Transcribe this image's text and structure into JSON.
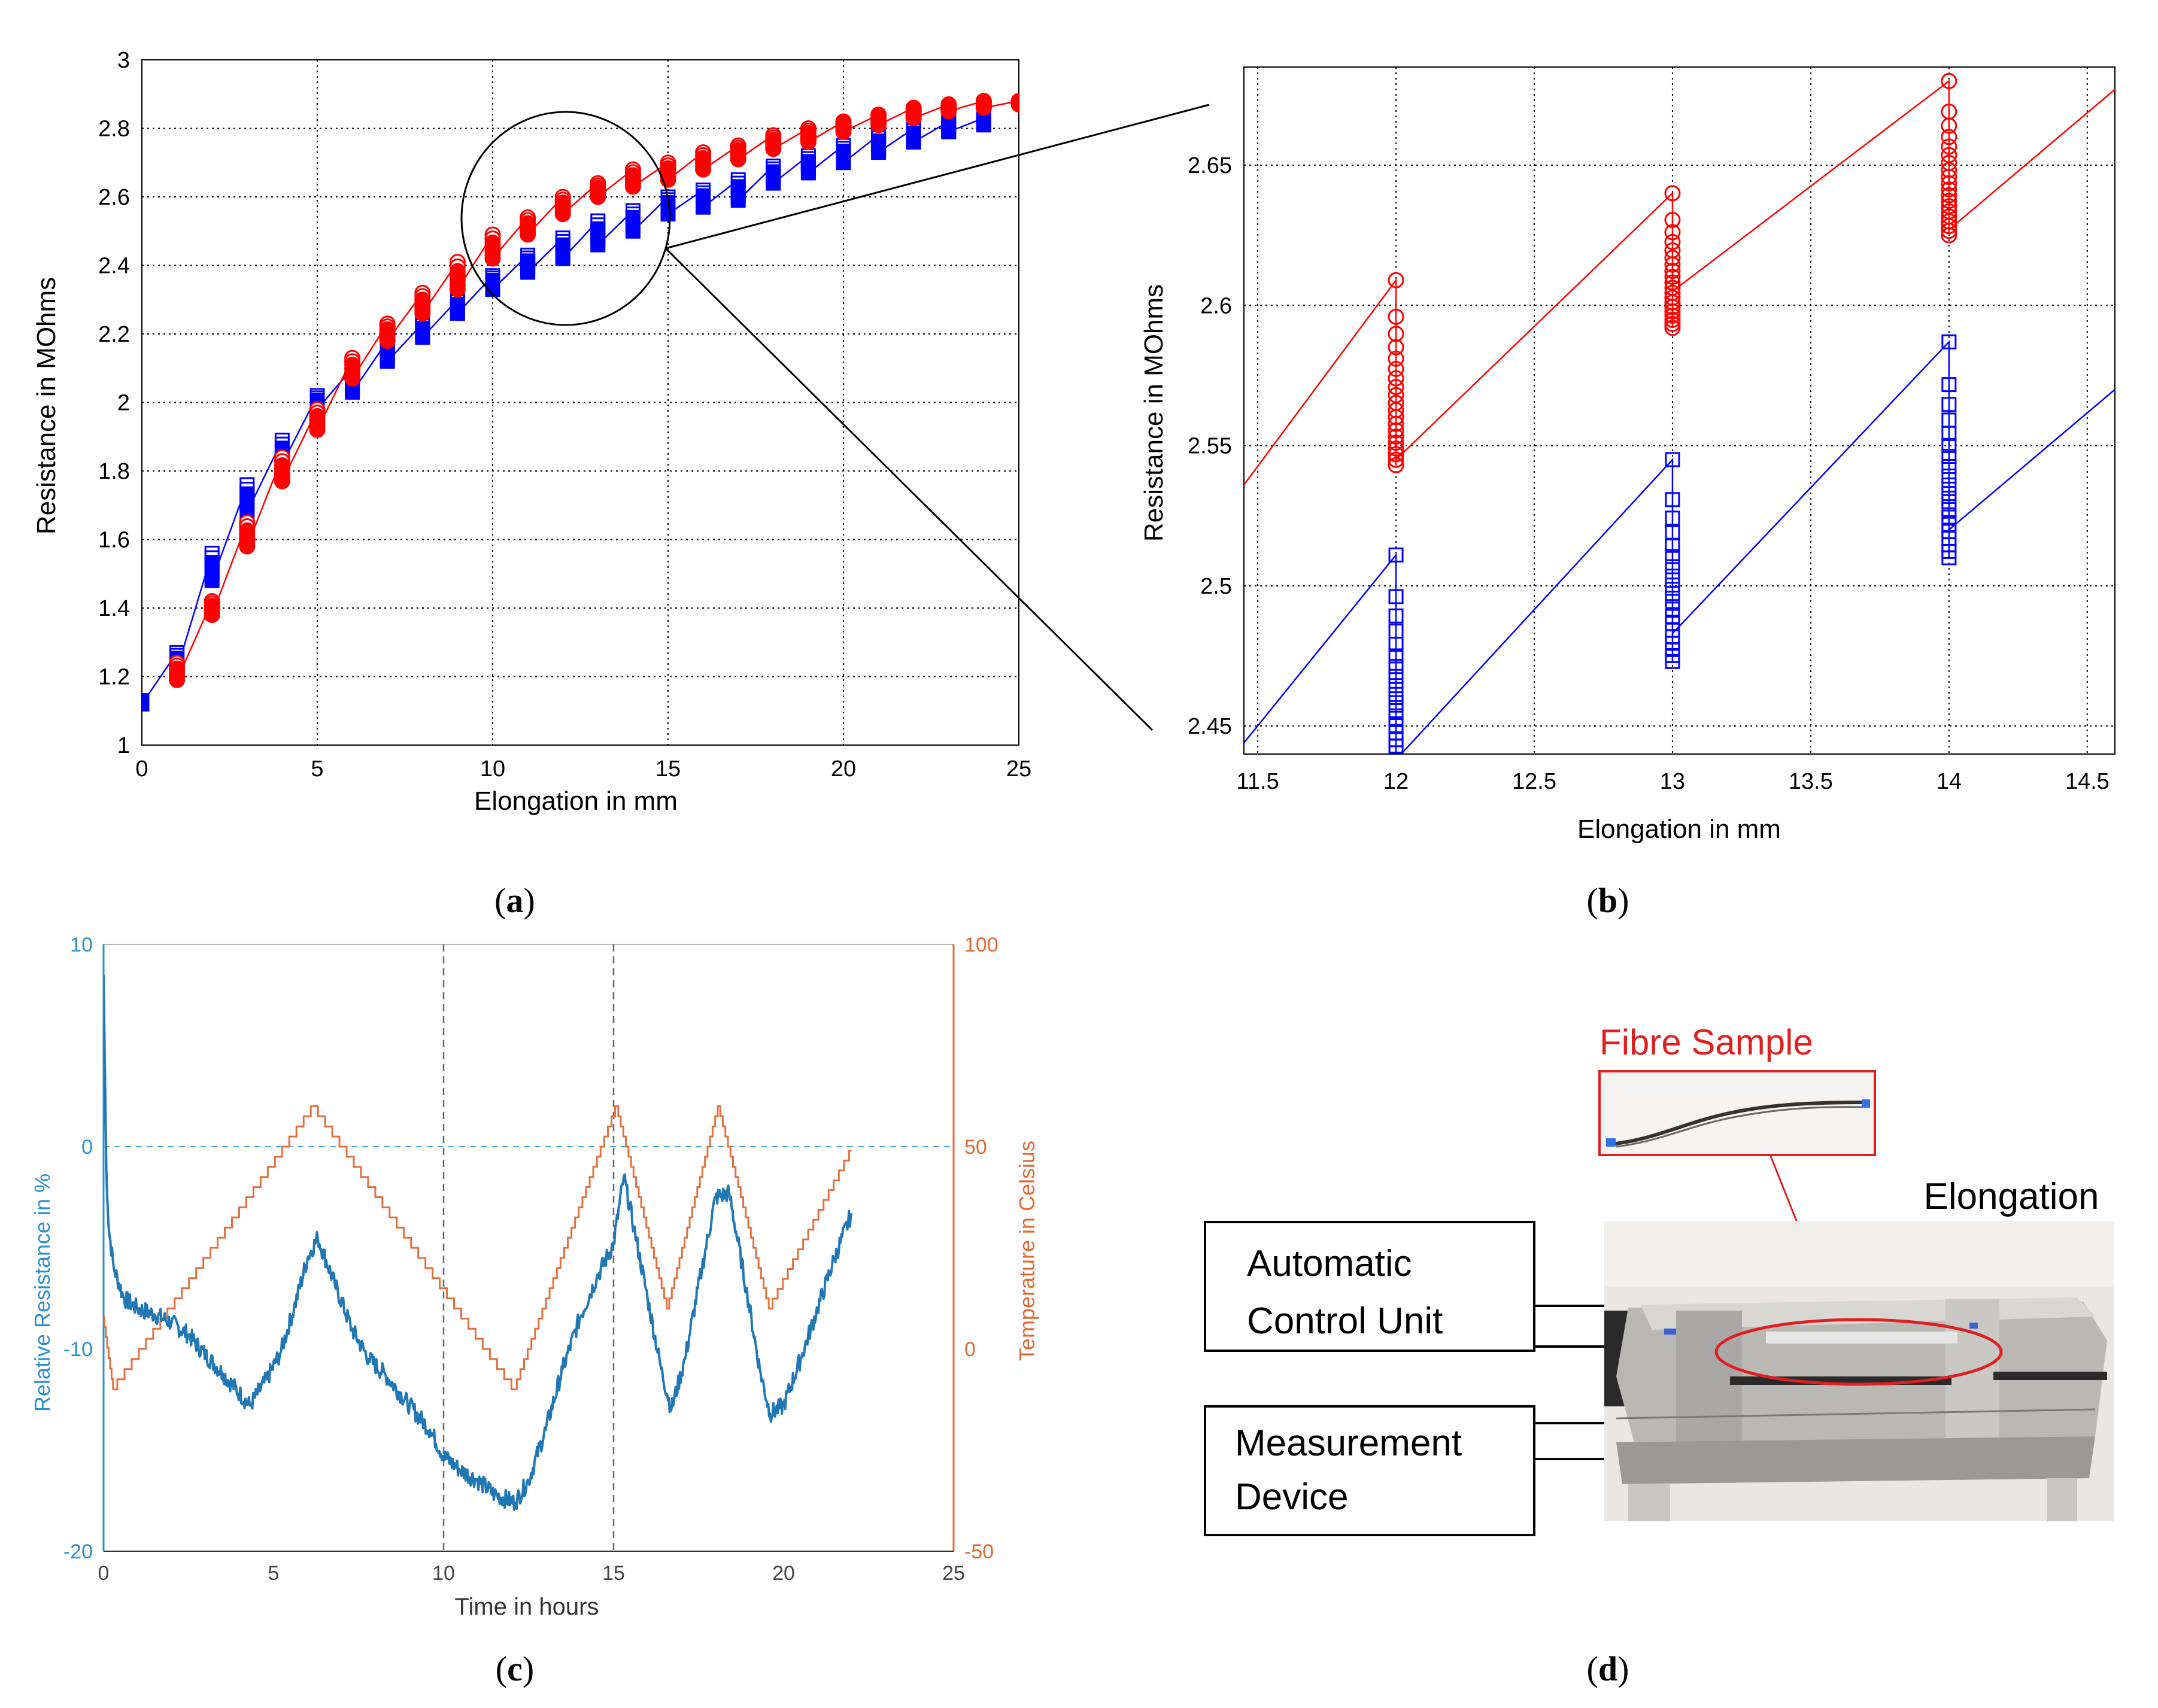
{
  "panels": {
    "a": {
      "caption_letter": "a"
    },
    "b": {
      "caption_letter": "b"
    },
    "c": {
      "caption_letter": "c"
    },
    "d": {
      "caption_letter": "d"
    }
  },
  "colors": {
    "blue_series": "#0000ff",
    "red_series": "#ff0000",
    "resistance_line": "#1f77b4",
    "temperature_line": "#e07040",
    "left_axis_c": "#2b8fd0",
    "right_axis_c": "#e06a35",
    "grid": "#000000"
  },
  "chart_data": [
    {
      "id": "a",
      "type": "line",
      "title": "",
      "xlabel": "Elongation in mm",
      "ylabel": "Resistance in MOhms",
      "xlim": [
        0,
        25
      ],
      "ylim": [
        1,
        3
      ],
      "xticks": [
        0,
        5,
        10,
        15,
        20,
        25
      ],
      "yticks": [
        1,
        1.2,
        1.4,
        1.6,
        1.8,
        2,
        2.2,
        2.4,
        2.6,
        2.8,
        3
      ],
      "grid": true,
      "series": [
        {
          "name": "blue",
          "marker": "square",
          "x": [
            0,
            1,
            2,
            3,
            4,
            5,
            6,
            7,
            8,
            9,
            10,
            11,
            12,
            13,
            14,
            15,
            16,
            17,
            18,
            19,
            20,
            21,
            22,
            23,
            24
          ],
          "high": [
            1.13,
            1.27,
            1.56,
            1.76,
            1.89,
            2.02,
            2.1,
            2.18,
            2.23,
            2.3,
            2.37,
            2.43,
            2.48,
            2.53,
            2.56,
            2.6,
            2.62,
            2.65,
            2.69,
            2.72,
            2.75,
            2.78,
            2.8,
            2.82,
            2.83
          ],
          "low": [
            1.12,
            1.22,
            1.48,
            1.68,
            1.82,
            1.98,
            2.03,
            2.12,
            2.19,
            2.26,
            2.33,
            2.38,
            2.42,
            2.46,
            2.5,
            2.55,
            2.57,
            2.59,
            2.64,
            2.67,
            2.7,
            2.73,
            2.76,
            2.79,
            2.81
          ]
        },
        {
          "name": "red",
          "marker": "circle",
          "x": [
            1,
            2,
            3,
            4,
            5,
            6,
            7,
            8,
            9,
            10,
            11,
            12,
            13,
            14,
            15,
            16,
            17,
            18,
            19,
            20,
            21,
            22,
            23,
            24,
            25
          ],
          "high": [
            1.24,
            1.42,
            1.65,
            1.84,
            1.98,
            2.13,
            2.23,
            2.32,
            2.41,
            2.49,
            2.54,
            2.6,
            2.64,
            2.68,
            2.7,
            2.73,
            2.75,
            2.78,
            2.8,
            2.82,
            2.84,
            2.86,
            2.87,
            2.88,
            2.88
          ],
          "low": [
            1.19,
            1.38,
            1.58,
            1.77,
            1.92,
            2.07,
            2.18,
            2.26,
            2.33,
            2.42,
            2.49,
            2.55,
            2.6,
            2.63,
            2.65,
            2.68,
            2.71,
            2.74,
            2.76,
            2.79,
            2.81,
            2.83,
            2.85,
            2.86,
            2.87
          ]
        }
      ]
    },
    {
      "id": "b",
      "type": "line",
      "title": "",
      "xlabel": "Elongation in mm",
      "ylabel": "Resistance in MOhms",
      "xlim": [
        11.45,
        14.6
      ],
      "ylim": [
        2.44,
        2.685
      ],
      "xticks": [
        11.5,
        12,
        12.5,
        13,
        13.5,
        14,
        14.5
      ],
      "yticks": [
        2.45,
        2.5,
        2.55,
        2.6,
        2.65
      ],
      "grid": true,
      "series": [
        {
          "name": "red",
          "marker": "circle",
          "points": [
            {
              "x": 12,
              "top": 2.609,
              "bottom": 2.543,
              "next_start": 2.545
            },
            {
              "x": 13,
              "top": 2.64,
              "bottom": 2.592,
              "next_start": 2.605
            },
            {
              "x": 14,
              "top": 2.68,
              "bottom": 2.625,
              "next_start": 2.627
            }
          ],
          "line_start": [
            11.45,
            2.536
          ],
          "line_end": [
            14.6,
            2.677
          ]
        },
        {
          "name": "blue",
          "marker": "square",
          "points": [
            {
              "x": 12,
              "top": 2.511,
              "bottom": 2.436,
              "next_start": 2.438
            },
            {
              "x": 13,
              "top": 2.545,
              "bottom": 2.473,
              "next_start": 2.483
            },
            {
              "x": 14,
              "top": 2.587,
              "bottom": 2.51,
              "next_start": 2.52
            }
          ],
          "line_start": [
            11.45,
            2.444
          ],
          "line_end": [
            14.6,
            2.57
          ]
        }
      ]
    },
    {
      "id": "c",
      "type": "line",
      "title": "",
      "xlabel": "Time in hours",
      "ylabel": "Relative Resistance in %",
      "ylabel_right": "Temperature in Celsius",
      "xlim": [
        0,
        25
      ],
      "ylim": [
        -20,
        10
      ],
      "ylim_right": [
        -50,
        100
      ],
      "xticks": [
        0,
        5,
        10,
        15,
        20,
        25
      ],
      "yticks": [
        -20,
        -10,
        0,
        10
      ],
      "yticks_right": [
        -50,
        0,
        50,
        100
      ],
      "vlines": [
        10,
        15
      ],
      "hline": 0,
      "series": [
        {
          "name": "Relative Resistance",
          "x": [
            0,
            0.08,
            0.15,
            0.3,
            0.6,
            1,
            1.5,
            2,
            2.5,
            3,
            3.5,
            4,
            4.3,
            4.8,
            5.2,
            5.6,
            6,
            6.3,
            6.8,
            7.3,
            7.8,
            8.3,
            9,
            9.6,
            10,
            10.5,
            11,
            11.5,
            12.1,
            12.5,
            13,
            13.5,
            14,
            14.5,
            15,
            15.3,
            15.6,
            16,
            16.4,
            16.7,
            17.1,
            17.6,
            18,
            18.4,
            18.9,
            19.3,
            19.6,
            20,
            20.5,
            21,
            21.5,
            22
          ],
          "y": [
            8.5,
            -1,
            -4,
            -6,
            -7.5,
            -8,
            -8.3,
            -8.7,
            -9.3,
            -10.3,
            -11.2,
            -12.2,
            -12.8,
            -11.5,
            -10.2,
            -8,
            -5.5,
            -4.5,
            -6.8,
            -9,
            -10.5,
            -11.3,
            -12.8,
            -14,
            -15.3,
            -16,
            -16.5,
            -17.2,
            -17.6,
            -16.5,
            -14,
            -11,
            -8.5,
            -6.5,
            -4.8,
            -1.5,
            -4,
            -7.5,
            -11,
            -13,
            -10.5,
            -6,
            -2.5,
            -2.3,
            -7,
            -11,
            -13.2,
            -12.8,
            -10.5,
            -8,
            -5.5,
            -3.3
          ]
        },
        {
          "name": "Temperature",
          "x": [
            0,
            0.3,
            6.2,
            12.1,
            15.1,
            16.6,
            18.1,
            19.6,
            22
          ],
          "y": [
            8,
            -10,
            60,
            -10,
            60,
            10,
            60,
            10,
            49
          ]
        }
      ]
    }
  ],
  "photo": {
    "fibre_label": "Fibre Sample",
    "elongation_label": "Elongation",
    "box1_line1": "Automatic",
    "box1_line2": "Control Unit",
    "box2_line1": "Measurement",
    "box2_line2": "Device"
  }
}
